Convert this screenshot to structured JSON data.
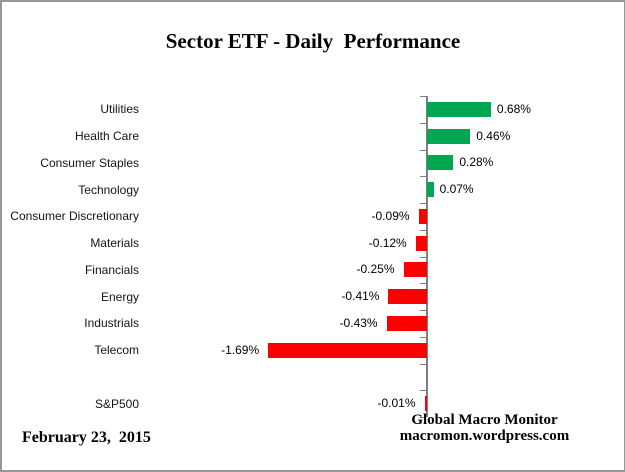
{
  "title": "Sector ETF - Daily  Performance",
  "footer": {
    "date": "February 23,  2015",
    "attribution_line1": "Global Macro Monitor",
    "attribution_line2": "macromon.wordpress.com"
  },
  "colors": {
    "positive_bar": "#00A651",
    "negative_bar": "#FF0000",
    "axis": "#808080",
    "border": "#989898"
  },
  "chart_data": {
    "type": "bar",
    "orientation": "horizontal",
    "title": "Sector ETF - Daily Performance",
    "categories": [
      "Utilities",
      "Health Care",
      "Consumer Staples",
      "Technology",
      "Consumer Discretionary",
      "Materials",
      "Financials",
      "Energy",
      "Industrials",
      "Telecom",
      "S&P500"
    ],
    "values": [
      0.68,
      0.46,
      0.28,
      0.07,
      -0.09,
      -0.12,
      -0.25,
      -0.41,
      -0.43,
      -1.69,
      -0.01
    ],
    "value_labels": [
      "0.68%",
      "0.46%",
      "0.28%",
      "0.07%",
      "-0.09%",
      "-0.12%",
      "-0.25%",
      "-0.41%",
      "-0.43%",
      "-1.69%",
      "-0.01%"
    ],
    "unit": "%",
    "gap_before_last_row": true,
    "grid": false,
    "legend": false,
    "xlim": [
      -2.0,
      2.0
    ],
    "value_label_position": "outside-end"
  }
}
